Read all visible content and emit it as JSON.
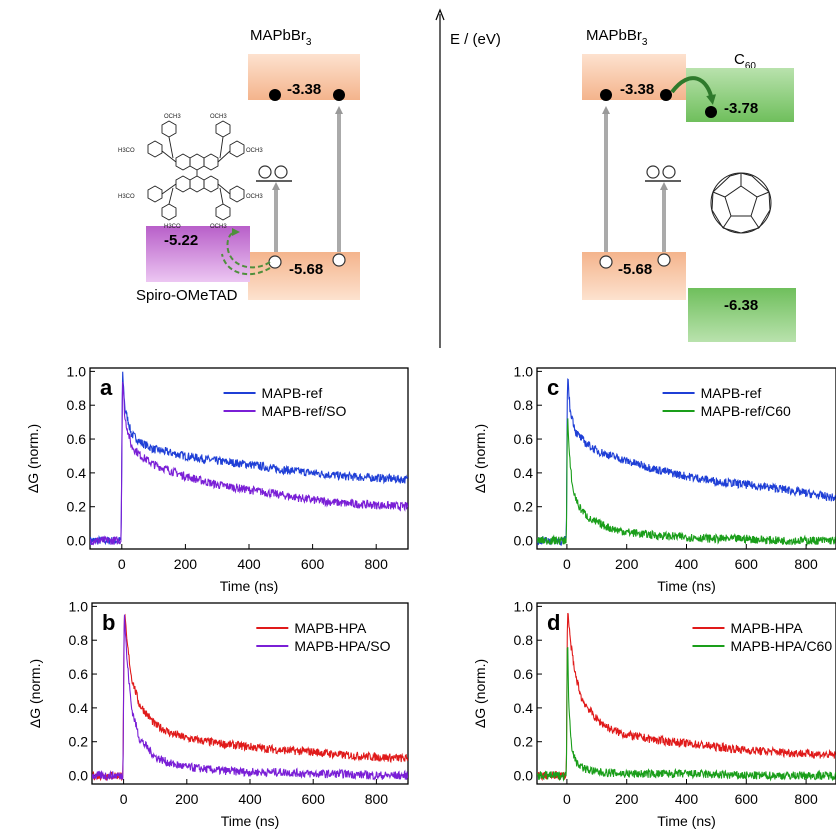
{
  "energy_diagram": {
    "axis_label": "E / (eV)",
    "left": {
      "perovskite_label": "MAPbBr",
      "perovskite_sub": "3",
      "cb_value": "-3.38",
      "vb_value": "-5.68",
      "htl_value": "-5.22",
      "htl_label": "Spiro-OMeTAD",
      "molecule_labels": [
        "OCH3",
        "H3CO",
        "OCH3",
        "H3CO",
        "OCH3",
        "H3CO",
        "OCH3",
        "OCH3"
      ]
    },
    "right": {
      "perovskite_label": "MAPbBr",
      "perovskite_sub": "3",
      "cb_value": "-3.38",
      "vb_value": "-5.68",
      "etl_label": "C",
      "etl_sub": "60",
      "etl_lumo_value": "-3.78",
      "etl_homo_value": "-6.38"
    },
    "colors": {
      "perovskite": "#f7c9a8",
      "htl": "#cc8ed6",
      "etl": "#8ccb7a",
      "arrow": "#aaaaaa",
      "transfer": "#3d8a3a"
    }
  },
  "chart_data": [
    {
      "panel": "a",
      "type": "line",
      "xlabel": "Time (ns)",
      "ylabel": "ΔG (norm.)",
      "xlim": [
        -100,
        900
      ],
      "ylim": [
        -0.05,
        1.02
      ],
      "xticks": [
        0,
        200,
        400,
        600,
        800
      ],
      "yticks": [
        0.0,
        0.2,
        0.4,
        0.6,
        0.8,
        1.0
      ],
      "legend_position": "top-right",
      "series": [
        {
          "name": "MAPB-ref",
          "color": "#1f3fd6",
          "x": [
            -100,
            -2,
            2,
            10,
            30,
            60,
            100,
            200,
            300,
            400,
            500,
            600,
            700,
            800,
            900
          ],
          "y": [
            0.0,
            0.0,
            1.0,
            0.78,
            0.63,
            0.58,
            0.54,
            0.5,
            0.47,
            0.45,
            0.42,
            0.4,
            0.38,
            0.37,
            0.36
          ]
        },
        {
          "name": "MAPB-ref/SO",
          "color": "#7a1fd6",
          "x": [
            -100,
            -2,
            2,
            10,
            30,
            60,
            100,
            200,
            300,
            400,
            500,
            600,
            700,
            800,
            900
          ],
          "y": [
            0.0,
            0.0,
            0.97,
            0.72,
            0.56,
            0.5,
            0.45,
            0.38,
            0.33,
            0.3,
            0.27,
            0.24,
            0.22,
            0.21,
            0.2
          ]
        }
      ]
    },
    {
      "panel": "b",
      "type": "line",
      "xlabel": "Time (ns)",
      "ylabel": "ΔG (norm.)",
      "xlim": [
        -100,
        900
      ],
      "ylim": [
        -0.05,
        1.02
      ],
      "xticks": [
        0,
        200,
        400,
        600,
        800
      ],
      "yticks": [
        0.0,
        0.2,
        0.4,
        0.6,
        0.8,
        1.0
      ],
      "legend_position": "top-right",
      "series": [
        {
          "name": "MAPB-HPA",
          "color": "#e01a1a",
          "x": [
            -100,
            -2,
            2,
            10,
            25,
            50,
            100,
            150,
            200,
            300,
            400,
            500,
            600,
            700,
            800,
            900
          ],
          "y": [
            0.0,
            0.0,
            0.98,
            0.8,
            0.58,
            0.42,
            0.3,
            0.25,
            0.22,
            0.19,
            0.17,
            0.15,
            0.14,
            0.12,
            0.11,
            0.1
          ]
        },
        {
          "name": "MAPB-HPA/SO",
          "color": "#7a1fd6",
          "x": [
            -100,
            -2,
            2,
            10,
            25,
            50,
            100,
            150,
            200,
            300,
            400,
            500,
            600,
            700,
            800,
            900
          ],
          "y": [
            0.0,
            0.0,
            0.98,
            0.7,
            0.4,
            0.22,
            0.11,
            0.07,
            0.05,
            0.03,
            0.02,
            0.02,
            0.01,
            0.01,
            0.0,
            0.0
          ]
        }
      ]
    },
    {
      "panel": "c",
      "type": "line",
      "xlabel": "Time (ns)",
      "ylabel": "ΔG (norm.)",
      "xlim": [
        -100,
        900
      ],
      "ylim": [
        -0.05,
        1.02
      ],
      "xticks": [
        0,
        200,
        400,
        600,
        800
      ],
      "yticks": [
        0.0,
        0.2,
        0.4,
        0.6,
        0.8,
        1.0
      ],
      "legend_position": "top-right",
      "series": [
        {
          "name": "MAPB-ref",
          "color": "#1f3fd6",
          "x": [
            -100,
            -2,
            2,
            10,
            30,
            60,
            100,
            200,
            300,
            400,
            500,
            600,
            700,
            800,
            900
          ],
          "y": [
            0.0,
            0.0,
            1.0,
            0.78,
            0.64,
            0.58,
            0.53,
            0.47,
            0.42,
            0.38,
            0.35,
            0.33,
            0.31,
            0.28,
            0.25
          ]
        },
        {
          "name": "MAPB-ref/C60",
          "color": "#1a9e1a",
          "x": [
            -100,
            -2,
            2,
            8,
            20,
            40,
            80,
            150,
            200,
            300,
            400,
            500,
            600,
            700,
            800,
            900
          ],
          "y": [
            0.0,
            0.0,
            0.75,
            0.5,
            0.3,
            0.2,
            0.12,
            0.07,
            0.05,
            0.03,
            0.02,
            0.01,
            0.01,
            0.0,
            0.0,
            0.0
          ]
        }
      ]
    },
    {
      "panel": "d",
      "type": "line",
      "xlabel": "Time (ns)",
      "ylabel": "ΔG (norm.)",
      "xlim": [
        -100,
        900
      ],
      "ylim": [
        -0.05,
        1.02
      ],
      "xticks": [
        0,
        200,
        400,
        600,
        800
      ],
      "yticks": [
        0.0,
        0.2,
        0.4,
        0.6,
        0.8,
        1.0
      ],
      "legend_position": "top-right",
      "series": [
        {
          "name": "MAPB-HPA",
          "color": "#e01a1a",
          "x": [
            -100,
            -2,
            2,
            10,
            25,
            50,
            100,
            150,
            200,
            300,
            400,
            500,
            600,
            700,
            800,
            900
          ],
          "y": [
            0.0,
            0.0,
            1.0,
            0.82,
            0.62,
            0.45,
            0.33,
            0.27,
            0.24,
            0.21,
            0.19,
            0.17,
            0.15,
            0.14,
            0.13,
            0.12
          ]
        },
        {
          "name": "MAPB-HPA/C60",
          "color": "#1a9e1a",
          "x": [
            -100,
            -2,
            2,
            6,
            15,
            30,
            60,
            100,
            200,
            400,
            600,
            800,
            900
          ],
          "y": [
            0.0,
            0.0,
            0.85,
            0.45,
            0.18,
            0.08,
            0.04,
            0.02,
            0.01,
            0.01,
            0.0,
            0.0,
            0.0
          ]
        }
      ]
    }
  ]
}
